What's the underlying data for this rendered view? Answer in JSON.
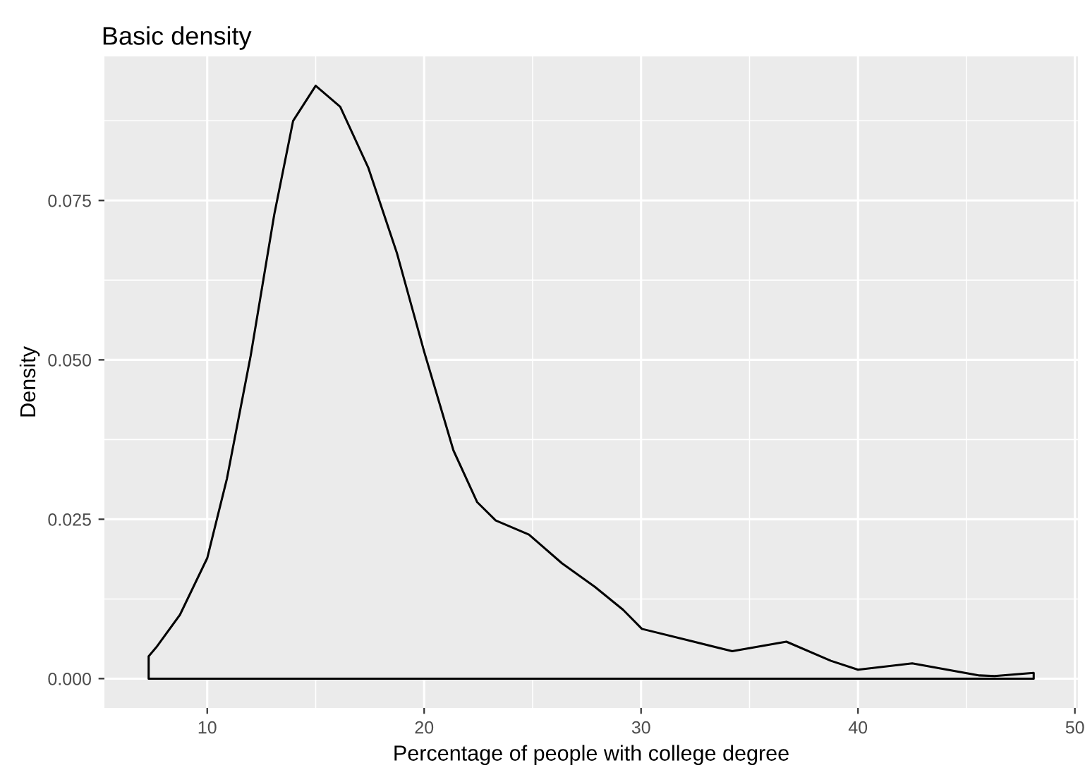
{
  "chart_data": {
    "type": "area",
    "title": "Basic density",
    "xlabel": "Percentage of people with college degree",
    "ylabel": "Density",
    "x": [
      7.3,
      7.65,
      8.74,
      10.0,
      10.91,
      12.0,
      13.09,
      13.96,
      15.0,
      16.13,
      17.43,
      18.74,
      20.0,
      21.35,
      22.44,
      23.3,
      24.83,
      26.35,
      27.87,
      29.17,
      30.04,
      32.2,
      34.2,
      36.7,
      38.75,
      40.0,
      42.5,
      45.6,
      46.3,
      48.1
    ],
    "series": [
      {
        "color": "#000000",
        "values": [
          0.0035,
          0.0049,
          0.01,
          0.0189,
          0.0314,
          0.0506,
          0.0728,
          0.0875,
          0.093,
          0.0897,
          0.0801,
          0.0668,
          0.0513,
          0.0358,
          0.0277,
          0.0248,
          0.0226,
          0.0181,
          0.0144,
          0.0108,
          0.0078,
          0.006,
          0.0043,
          0.0058,
          0.0028,
          0.0014,
          0.0024,
          0.0005,
          0.0004,
          0.0009
        ]
      }
    ],
    "xlim": [
      5.26,
      50.14
    ],
    "ylim": [
      -0.0046,
      0.0976
    ],
    "xticks": [
      10,
      20,
      30,
      40,
      50
    ],
    "yticks": [
      {
        "value": 0,
        "label": "0.000"
      },
      {
        "value": 0.025,
        "label": "0.025"
      },
      {
        "value": 0.05,
        "label": "0.050"
      },
      {
        "value": 0.075,
        "label": "0.075"
      }
    ],
    "grid": true
  }
}
